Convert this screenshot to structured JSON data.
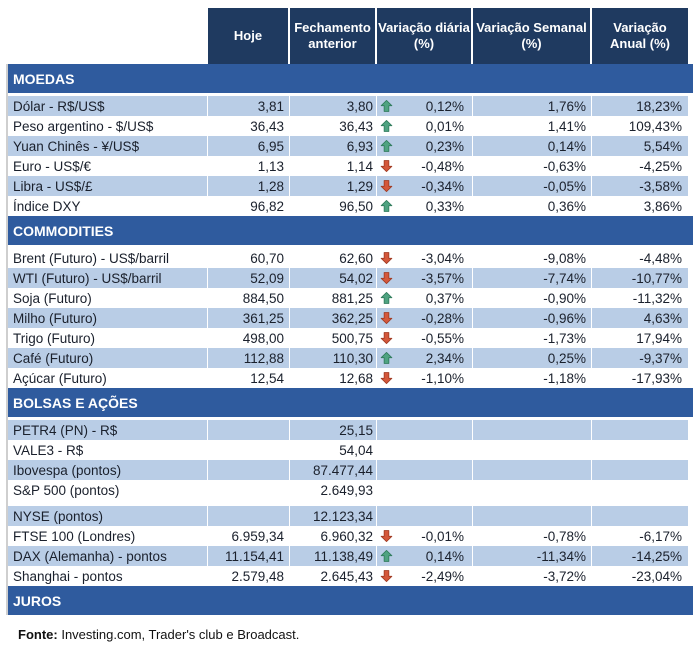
{
  "header": {
    "columns": [
      "Hoje",
      "Fechamento\nanterior",
      "Variação diária\n(%)",
      "Variação Semanal\n(%)",
      "Variação\nAnual (%)"
    ]
  },
  "sections": [
    {
      "title": "MOEDAS",
      "first_row_shaded": true,
      "rows": [
        {
          "label": "Dólar - R$/US$",
          "hoje": "3,81",
          "fechamento": "3,80",
          "arrow": "up",
          "diaria": "0,12%",
          "semanal": "1,76%",
          "anual": "18,23%"
        },
        {
          "label": "Peso argentino - $/US$",
          "hoje": "36,43",
          "fechamento": "36,43",
          "arrow": "up",
          "diaria": "0,01%",
          "semanal": "1,41%",
          "anual": "109,43%"
        },
        {
          "label": "Yuan Chinês - ¥/US$",
          "hoje": "6,95",
          "fechamento": "6,93",
          "arrow": "up",
          "diaria": "0,23%",
          "semanal": "0,14%",
          "anual": "5,54%"
        },
        {
          "label": "Euro - US$/€",
          "hoje": "1,13",
          "fechamento": "1,14",
          "arrow": "down",
          "diaria": "-0,48%",
          "semanal": "-0,63%",
          "anual": "-4,25%"
        },
        {
          "label": "Libra - US$/£",
          "hoje": "1,28",
          "fechamento": "1,29",
          "arrow": "down",
          "diaria": "-0,34%",
          "semanal": "-0,05%",
          "anual": "-3,58%"
        },
        {
          "label": "Índice DXY",
          "hoje": "96,82",
          "fechamento": "96,50",
          "arrow": "up",
          "diaria": "0,33%",
          "semanal": "0,36%",
          "anual": "3,86%"
        }
      ]
    },
    {
      "title": "COMMODITIES",
      "first_row_shaded": false,
      "rows": [
        {
          "label": "Brent (Futuro) - US$/barril",
          "hoje": "60,70",
          "fechamento": "62,60",
          "arrow": "down",
          "diaria": "-3,04%",
          "semanal": "-9,08%",
          "anual": "-4,48%"
        },
        {
          "label": "WTI (Futuro) - US$/barril",
          "hoje": "52,09",
          "fechamento": "54,02",
          "arrow": "down",
          "diaria": "-3,57%",
          "semanal": "-7,74%",
          "anual": "-10,77%"
        },
        {
          "label": "Soja (Futuro)",
          "hoje": "884,50",
          "fechamento": "881,25",
          "arrow": "up",
          "diaria": "0,37%",
          "semanal": "-0,90%",
          "anual": "-11,32%"
        },
        {
          "label": "Milho (Futuro)",
          "hoje": "361,25",
          "fechamento": "362,25",
          "arrow": "down",
          "diaria": "-0,28%",
          "semanal": "-0,96%",
          "anual": "4,63%"
        },
        {
          "label": "Trigo (Futuro)",
          "hoje": "498,00",
          "fechamento": "500,75",
          "arrow": "down",
          "diaria": "-0,55%",
          "semanal": "-1,73%",
          "anual": "17,94%"
        },
        {
          "label": "Café (Futuro)",
          "hoje": "112,88",
          "fechamento": "110,30",
          "arrow": "up",
          "diaria": "2,34%",
          "semanal": "0,25%",
          "anual": "-9,37%"
        },
        {
          "label": "Açúcar (Futuro)",
          "hoje": "12,54",
          "fechamento": "12,68",
          "arrow": "down",
          "diaria": "-1,10%",
          "semanal": "-1,18%",
          "anual": "-17,93%"
        }
      ]
    },
    {
      "title": "BOLSAS E AÇÕES",
      "first_row_shaded": true,
      "rows": [
        {
          "label": "PETR4 (PN) - R$",
          "hoje": "",
          "fechamento": "25,15",
          "arrow": null,
          "diaria": "",
          "semanal": "",
          "anual": ""
        },
        {
          "label": "VALE3 - R$",
          "hoje": "",
          "fechamento": "54,04",
          "arrow": null,
          "diaria": "",
          "semanal": "",
          "anual": ""
        },
        {
          "label": "Ibovespa (pontos)",
          "hoje": "",
          "fechamento": "87.477,44",
          "arrow": null,
          "diaria": "",
          "semanal": "",
          "anual": ""
        },
        {
          "label": "S&P 500 (pontos)",
          "hoje": "",
          "fechamento": "2.649,93",
          "arrow": null,
          "diaria": "",
          "semanal": "",
          "anual": "",
          "spacer_after": true
        },
        {
          "label": "NYSE (pontos)",
          "hoje": "",
          "fechamento": "12.123,34",
          "arrow": null,
          "diaria": "",
          "semanal": "",
          "anual": ""
        },
        {
          "label": "FTSE 100 (Londres)",
          "hoje": "6.959,34",
          "fechamento": "6.960,32",
          "arrow": "down",
          "diaria": "-0,01%",
          "semanal": "-0,78%",
          "anual": "-6,17%"
        },
        {
          "label": "DAX (Alemanha) - pontos",
          "hoje": "11.154,41",
          "fechamento": "11.138,49",
          "arrow": "up",
          "diaria": "0,14%",
          "semanal": "-11,34%",
          "anual": "-14,25%"
        },
        {
          "label": "Shanghai - pontos",
          "hoje": "2.579,48",
          "fechamento": "2.645,43",
          "arrow": "down",
          "diaria": "-2,49%",
          "semanal": "-3,72%",
          "anual": "-23,04%"
        }
      ]
    },
    {
      "title": "JUROS",
      "first_row_shaded": true,
      "rows": []
    }
  ],
  "footer": {
    "bold": "Fonte:",
    "text": " Investing.com, Trader's club e Broadcast."
  },
  "colors": {
    "header_bg": "#1f3a60",
    "section_band_bg": "#2f5b9e",
    "row_shaded_bg": "#b9cde6",
    "arrow_up_fill": "#4fa381",
    "arrow_up_stroke": "#2f7a5b",
    "arrow_down_fill": "#d4573a",
    "arrow_down_stroke": "#9e3a22"
  }
}
